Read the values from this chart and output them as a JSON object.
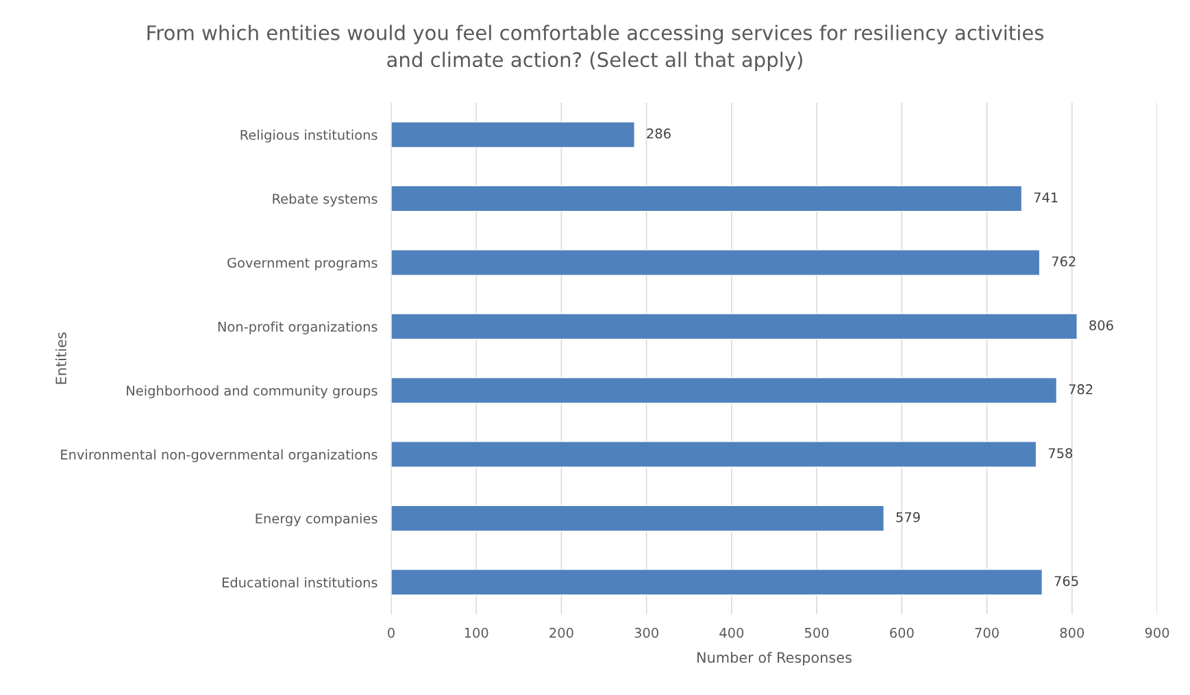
{
  "chart_data": {
    "type": "bar",
    "orientation": "horizontal",
    "title": "From which entities would you feel comfortable accessing services for resiliency activities\nand climate action? (Select all that apply)",
    "xlabel": "Number of Responses",
    "ylabel": "Entities",
    "categories": [
      "Religious institutions",
      "Rebate systems",
      "Government programs",
      "Non-profit organizations",
      "Neighborhood and community groups",
      "Environmental non-governmental organizations",
      "Energy companies",
      "Educational institutions"
    ],
    "values": [
      286,
      741,
      762,
      806,
      782,
      758,
      579,
      765
    ],
    "color": "#4f81bd",
    "xlim": [
      0,
      900
    ],
    "xticks": [
      0,
      100,
      200,
      300,
      400,
      500,
      600,
      700,
      800,
      900
    ],
    "grid": "x",
    "data_labels": true,
    "legend": false
  }
}
